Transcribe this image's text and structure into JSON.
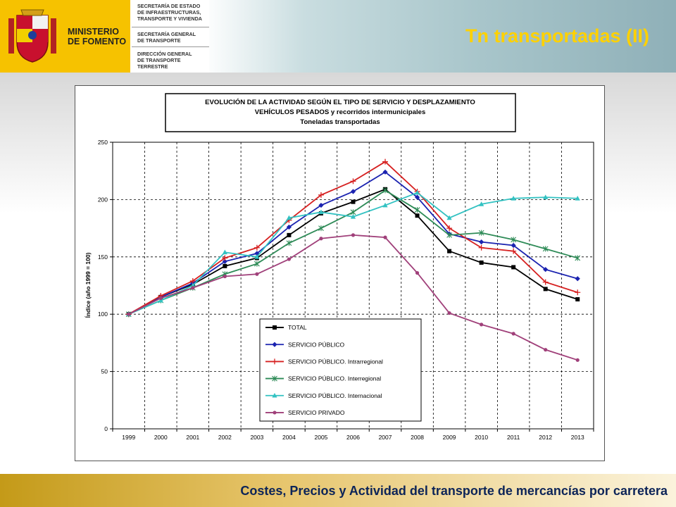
{
  "header": {
    "ministry_line1": "MINISTERIO",
    "ministry_line2": "DE FOMENTO",
    "dept1_l1": "SECRETARÍA DE ESTADO",
    "dept1_l2": "DE INFRAESTRUCTURAS,",
    "dept1_l3": "TRANSPORTE Y VIVIENDA",
    "dept2_l1": "SECRETARÍA GENERAL",
    "dept2_l2": "DE TRANSPORTE",
    "dept3_l1": "DIRECCIÓN GENERAL",
    "dept3_l2": "DE TRANSPORTE",
    "dept3_l3": "TERRESTRE",
    "title": "Tn transportadas (II)"
  },
  "footer": {
    "text": "Costes, Precios y Actividad del transporte de mercancías por carretera"
  },
  "colors": {
    "logo_yellow": "#f6c200",
    "title_yellow": "#ffd100",
    "footer_text": "#0c2458"
  },
  "chart_data": {
    "type": "line",
    "title_lines": [
      "EVOLUCIÓN DE LA ACTIVIDAD SEGÚN EL TIPO DE SERVICIO Y DESPLAZAMIENTO",
      "VEHÍCULOS PESADOS y  recorridos intermunicipales",
      "Toneladas transportadas"
    ],
    "ylabel": "Índice (año 1999 = 100)",
    "xlabel": "",
    "ylim": [
      0,
      250
    ],
    "yticks": [
      0,
      50,
      100,
      150,
      200,
      250
    ],
    "grid": true,
    "legend_position": "bottom-center",
    "x": [
      "1999",
      "2000",
      "2001",
      "2002",
      "2003",
      "2004",
      "2005",
      "2006",
      "2007",
      "2008",
      "2009",
      "2010",
      "2011",
      "2012",
      "2013"
    ],
    "series": [
      {
        "name": "TOTAL",
        "color": "#000000",
        "marker": "square",
        "values": [
          100,
          115,
          126,
          142,
          149,
          169,
          188,
          198,
          209,
          186,
          155,
          145,
          141,
          122,
          113
        ]
      },
      {
        "name": "SERVICIO PÚBLICO",
        "color": "#1b23b0",
        "marker": "diamond",
        "values": [
          100,
          115,
          127,
          146,
          153,
          176,
          195,
          207,
          224,
          202,
          170,
          163,
          160,
          139,
          131
        ]
      },
      {
        "name": "SERVICIO PÚBLICO. Intrarregional",
        "color": "#d62020",
        "marker": "plus",
        "values": [
          100,
          116,
          129,
          149,
          158,
          182,
          204,
          216,
          233,
          207,
          175,
          158,
          155,
          128,
          119
        ]
      },
      {
        "name": "SERVICIO PÚBLICO. Interregional",
        "color": "#2e8b57",
        "marker": "star",
        "values": [
          100,
          112,
          123,
          135,
          144,
          162,
          175,
          189,
          208,
          191,
          169,
          171,
          165,
          157,
          149
        ]
      },
      {
        "name": "SERVICIO PÚBLICO. Internacional",
        "color": "#33c2c2",
        "marker": "triangle",
        "values": [
          100,
          112,
          125,
          154,
          150,
          184,
          189,
          185,
          195,
          206,
          184,
          196,
          201,
          202,
          201
        ]
      },
      {
        "name": "SERVICIO PRIVADO",
        "color": "#a0407a",
        "marker": "circle",
        "values": [
          100,
          114,
          123,
          133,
          135,
          148,
          166,
          169,
          167,
          136,
          101,
          91,
          83,
          69,
          60
        ]
      }
    ]
  }
}
